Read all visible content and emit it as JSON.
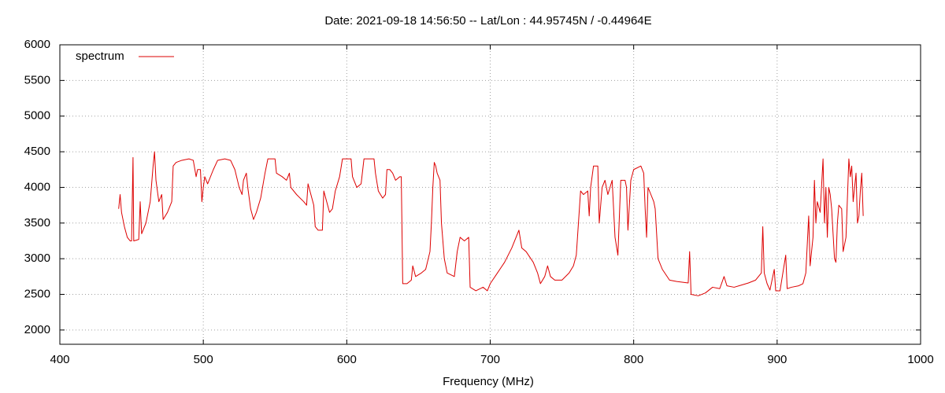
{
  "chart_data": {
    "type": "line",
    "title": "Date: 2021-09-18 14:56:50  --  Lat/Lon : 44.95745N / -0.44964E",
    "x_label": "Frequency (MHz)",
    "xlim": [
      400,
      1000
    ],
    "xticks": [
      400,
      500,
      600,
      700,
      800,
      900,
      1000
    ],
    "ylim": [
      1800,
      6000
    ],
    "yticks": [
      2000,
      2500,
      3000,
      3500,
      4000,
      4500,
      5000,
      5500,
      6000
    ],
    "grid": true,
    "legend": "top-left",
    "x": [
      441,
      442,
      443,
      445,
      447,
      449,
      450,
      451,
      451.5,
      455,
      456,
      457,
      460,
      463,
      465,
      466,
      467,
      469,
      471,
      472,
      475,
      478,
      479,
      481,
      485,
      490,
      493,
      495,
      496,
      498,
      499,
      500,
      501,
      503,
      507,
      510,
      515,
      519,
      522,
      525,
      527,
      528,
      530,
      531,
      533,
      535,
      537,
      540,
      543,
      545,
      550,
      551,
      555,
      558,
      560,
      561,
      565,
      570,
      572,
      573,
      575,
      577,
      578,
      580,
      583,
      584,
      586,
      588,
      590,
      592,
      595,
      597,
      600,
      603,
      604,
      607,
      610,
      612,
      619,
      620,
      622,
      625,
      627,
      628,
      630,
      632,
      634,
      637,
      638,
      639,
      642,
      645,
      646,
      648,
      652,
      655,
      658,
      659,
      660,
      661,
      662,
      663,
      665,
      666,
      668,
      670,
      675,
      677,
      679,
      682,
      685,
      686,
      690,
      695,
      698,
      700,
      705,
      710,
      715,
      718,
      720,
      722,
      725,
      730,
      733,
      735,
      738,
      740,
      742,
      745,
      750,
      755,
      758,
      760,
      763,
      765,
      768,
      769,
      770,
      772,
      775,
      776,
      778,
      780,
      782,
      785,
      787,
      789,
      791,
      794,
      795,
      796,
      798,
      800,
      805,
      807,
      808,
      809,
      810,
      812,
      814,
      815,
      817,
      820,
      825,
      830,
      838,
      839,
      840,
      845,
      850,
      855,
      860,
      863,
      865,
      870,
      875,
      880,
      885,
      889,
      890,
      891,
      893,
      895,
      898,
      899,
      902,
      906,
      907,
      910,
      915,
      918,
      920,
      922,
      923,
      925,
      926,
      927,
      928,
      930,
      932,
      933,
      934,
      935,
      936,
      937,
      938,
      940,
      941,
      942,
      943,
      945,
      946,
      948,
      950,
      951,
      952,
      953,
      955,
      956,
      957,
      958,
      959,
      960
    ],
    "series": [
      {
        "name": "spectrum",
        "color": "#dd0000",
        "values": [
          3700,
          3900,
          3650,
          3450,
          3300,
          3250,
          3250,
          4420,
          3250,
          3270,
          3800,
          3350,
          3500,
          3800,
          4300,
          4500,
          4100,
          3800,
          3900,
          3550,
          3650,
          3800,
          4300,
          4350,
          4380,
          4400,
          4380,
          4150,
          4250,
          4250,
          3800,
          4000,
          4150,
          4050,
          4250,
          4380,
          4400,
          4380,
          4250,
          4000,
          3900,
          4100,
          4200,
          4000,
          3700,
          3550,
          3650,
          3850,
          4200,
          4400,
          4400,
          4200,
          4150,
          4100,
          4200,
          4000,
          3900,
          3800,
          3750,
          4050,
          3900,
          3750,
          3450,
          3400,
          3400,
          3950,
          3800,
          3650,
          3700,
          3950,
          4150,
          4400,
          4400,
          4400,
          4150,
          4000,
          4050,
          4400,
          4400,
          4200,
          3950,
          3850,
          3900,
          4250,
          4250,
          4200,
          4100,
          4150,
          4150,
          2650,
          2650,
          2700,
          2900,
          2750,
          2800,
          2850,
          3100,
          3500,
          4000,
          4350,
          4300,
          4200,
          4100,
          3500,
          3000,
          2800,
          2750,
          3100,
          3300,
          3250,
          3300,
          2600,
          2550,
          2600,
          2550,
          2650,
          2800,
          2950,
          3150,
          3300,
          3400,
          3150,
          3100,
          2950,
          2800,
          2650,
          2750,
          2900,
          2750,
          2700,
          2700,
          2800,
          2900,
          3050,
          3950,
          3900,
          3950,
          3600,
          4000,
          4300,
          4300,
          3500,
          4000,
          4100,
          3900,
          4100,
          3300,
          3050,
          4100,
          4100,
          4000,
          3400,
          4100,
          4250,
          4300,
          4200,
          3700,
          3300,
          4000,
          3900,
          3800,
          3700,
          3000,
          2850,
          2700,
          2680,
          2660,
          3100,
          2500,
          2480,
          2520,
          2600,
          2580,
          2750,
          2620,
          2600,
          2630,
          2660,
          2700,
          2800,
          3450,
          2800,
          2650,
          2560,
          2850,
          2550,
          2550,
          3050,
          2580,
          2600,
          2620,
          2650,
          2800,
          3600,
          2900,
          3300,
          4100,
          3500,
          3800,
          3650,
          4400,
          3500,
          4000,
          3300,
          4000,
          3900,
          3700,
          3000,
          2950,
          3500,
          3750,
          3700,
          3100,
          3300,
          4400,
          4150,
          4300,
          3800,
          4200,
          3500,
          3600,
          3950,
          4200,
          3600
        ]
      }
    ]
  }
}
